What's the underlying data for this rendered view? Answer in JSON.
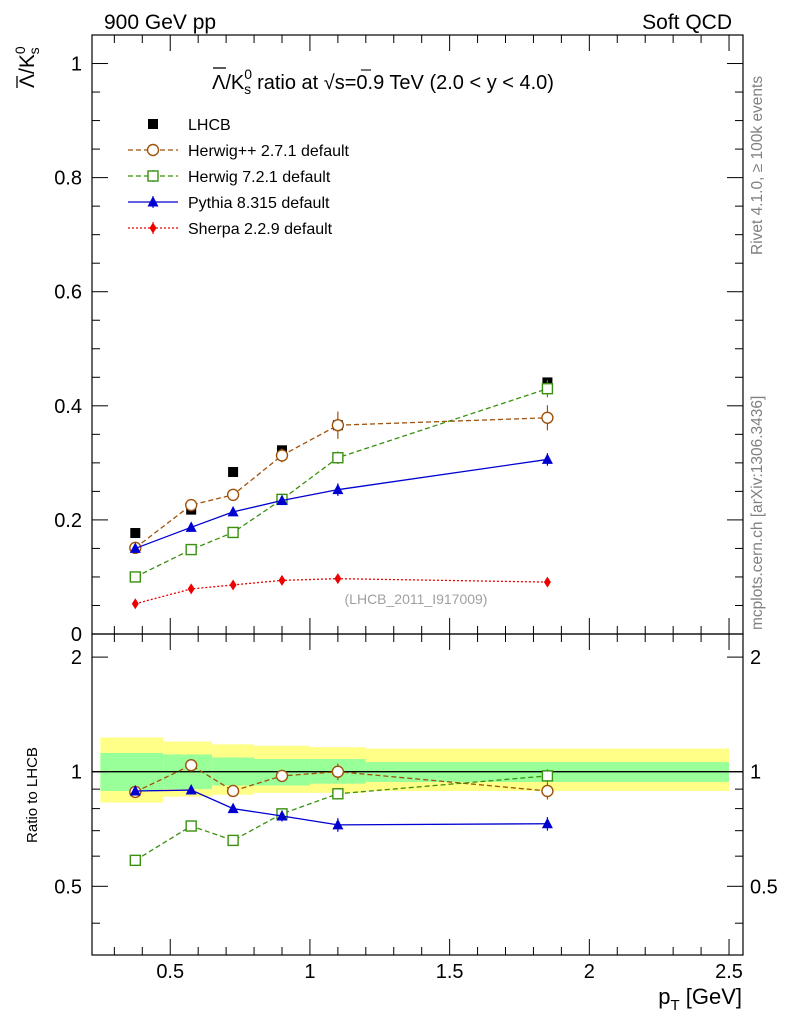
{
  "header": {
    "left_label": "900 GeV pp",
    "right_label": "Soft QCD"
  },
  "side_labels": {
    "rivet": "Rivet 4.1.0, ≥ 100k events",
    "mcplots": "mcplots.cern.ch [arXiv:1306.3436]"
  },
  "chart_data": [
    {
      "type": "line",
      "title": "Λ̅/K⁰ₛ ratio at √s=0.9 TeV (2.0 < y < 4.0)",
      "title_parts": {
        "pre": "/K",
        "post": "ratio at ",
        "sqrt": "√",
        "s_text": "s=0.9 TeV (2.0 < y < 4.0)",
        "lambda": "Λ",
        "k_sup": "0",
        "k_sub": "s"
      },
      "ylabel": "Λ̅/K⁰ₛ",
      "ylabel_parts": {
        "lambda": "Λ",
        "k": "/K",
        "sup": "0",
        "sub": "s"
      },
      "xlim": [
        0.22,
        2.55
      ],
      "ylim": [
        0.0,
        1.05
      ],
      "yticks": [
        0,
        0.2,
        0.4,
        0.6,
        0.8,
        1
      ],
      "ytick_labels": [
        "0",
        "0.2",
        "0.4",
        "0.6",
        "0.8",
        "1"
      ],
      "watermark": "(LHCB_2011_I917009)",
      "legend_position": "top-left",
      "x": [
        0.375,
        0.575,
        0.725,
        0.9,
        1.1,
        1.85
      ],
      "series": [
        {
          "name": "LHCB",
          "marker": "square-filled",
          "color": "#000000",
          "line": "none",
          "values": [
            0.177,
            0.218,
            0.284,
            0.322,
            0.366,
            0.441
          ]
        },
        {
          "name": "Herwig++ 2.7.1 default",
          "marker": "circle-open",
          "color": "#a0520a",
          "line": "dashed",
          "values": [
            0.151,
            0.226,
            0.244,
            0.313,
            0.366,
            0.379
          ],
          "errors": [
            0.006,
            0.007,
            0.008,
            0.012,
            0.024,
            0.022
          ]
        },
        {
          "name": "Herwig 7.2.1 default",
          "marker": "square-open",
          "color": "#3a9010",
          "line": "dashed",
          "values": [
            0.1,
            0.148,
            0.178,
            0.236,
            0.309,
            0.43
          ],
          "errors": [
            0.004,
            0.005,
            0.006,
            0.008,
            0.011,
            0.015
          ]
        },
        {
          "name": "Pythia 8.315 default",
          "marker": "triangle-filled",
          "color": "#0000d0",
          "line": "solid",
          "values": [
            0.15,
            0.187,
            0.214,
            0.234,
            0.253,
            0.306
          ],
          "errors": [
            0.004,
            0.005,
            0.006,
            0.008,
            0.011,
            0.011
          ]
        },
        {
          "name": "Sherpa 2.2.9 default",
          "marker": "diamond-filled",
          "color": "#ee0000",
          "line": "dotted",
          "values": [
            0.053,
            0.079,
            0.086,
            0.094,
            0.097,
            0.091
          ],
          "errors": [
            0.002,
            0.003,
            0.003,
            0.003,
            0.004,
            0.004
          ]
        }
      ]
    },
    {
      "type": "line",
      "title": "",
      "ylabel": "Ratio to LHCB",
      "xlabel": "p_T [GeV]",
      "xlabel_parts": {
        "p": "p",
        "sub": "T",
        "unit": " [GeV]"
      },
      "xlim": [
        0.22,
        2.55
      ],
      "ylim": [
        0.33,
        2.3
      ],
      "yscale": "log",
      "xticks": [
        0.5,
        1,
        1.5,
        2,
        2.5
      ],
      "xtick_labels": [
        "0.5",
        "1",
        "1.5",
        "2",
        "2.5"
      ],
      "yticks": [
        0.5,
        1,
        2
      ],
      "ytick_labels": [
        "0.5",
        "1",
        "2"
      ],
      "reference_line": 1,
      "band_edges": [
        0.25,
        0.475,
        0.65,
        0.8,
        1.0,
        1.2,
        2.5
      ],
      "band_inner": [
        [
          0.89,
          1.12
        ],
        [
          0.9,
          1.11
        ],
        [
          0.92,
          1.09
        ],
        [
          0.92,
          1.08
        ],
        [
          0.93,
          1.08
        ],
        [
          0.94,
          1.06
        ]
      ],
      "band_outer": [
        [
          0.83,
          1.23
        ],
        [
          0.86,
          1.2
        ],
        [
          0.87,
          1.18
        ],
        [
          0.88,
          1.17
        ],
        [
          0.88,
          1.16
        ],
        [
          0.89,
          1.15
        ]
      ],
      "band_colors": {
        "inner": "#99ff99",
        "outer": "#ffff88"
      },
      "x": [
        0.375,
        0.575,
        0.725,
        0.9,
        1.1,
        1.85
      ],
      "series": [
        {
          "name": "Herwig++ 2.7.1 default",
          "marker": "circle-open",
          "color": "#a0520a",
          "line": "dashed",
          "values": [
            0.885,
            1.04,
            0.89,
            0.975,
            1.0,
            0.89
          ],
          "errors": [
            0.02,
            0.025,
            0.03,
            0.035,
            0.05,
            0.045
          ]
        },
        {
          "name": "Herwig 7.2.1 default",
          "marker": "square-open",
          "color": "#3a9010",
          "line": "dashed",
          "values": [
            0.585,
            0.72,
            0.66,
            0.775,
            0.875,
            0.975
          ],
          "errors": [
            0.015,
            0.02,
            0.02,
            0.025,
            0.03,
            0.04
          ]
        },
        {
          "name": "Pythia 8.315 default",
          "marker": "triangle-filled",
          "color": "#0000d0",
          "line": "solid",
          "values": [
            0.89,
            0.895,
            0.8,
            0.765,
            0.725,
            0.73
          ],
          "errors": [
            0.015,
            0.02,
            0.02,
            0.025,
            0.03,
            0.03
          ]
        }
      ]
    }
  ]
}
